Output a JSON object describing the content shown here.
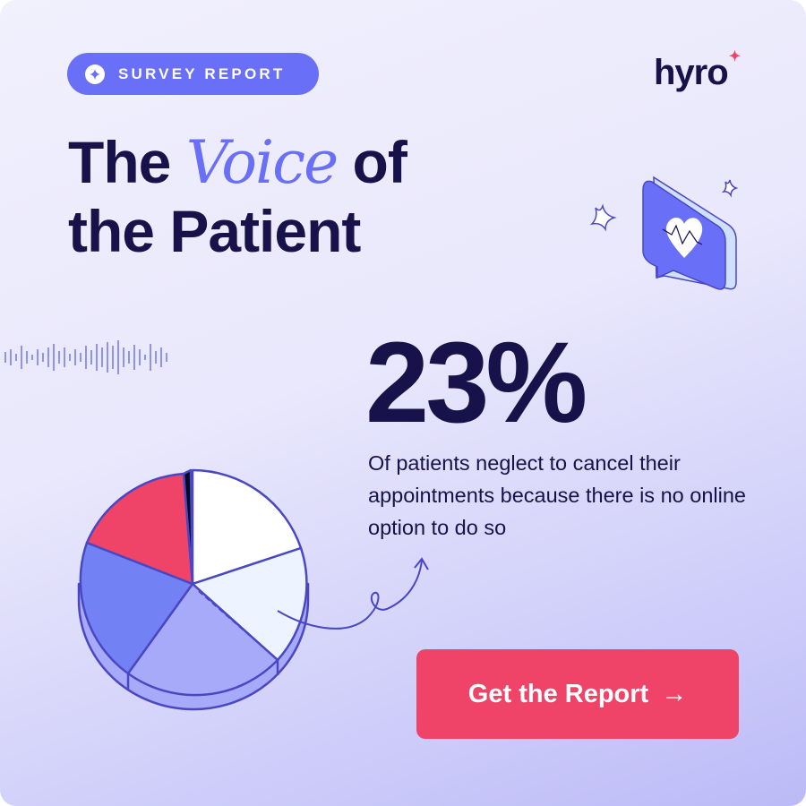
{
  "badge": {
    "label": "SURVEY REPORT",
    "icon": "sparkle-icon"
  },
  "logo": {
    "text": "hyro"
  },
  "headline": {
    "part1": "The",
    "highlight": "Voice",
    "part2": "of",
    "line2": "the Patient"
  },
  "stat": {
    "value": "23%",
    "description": "Of patients neglect to cancel their appointments because there is no online option to do so"
  },
  "cta": {
    "label": "Get the Report",
    "icon": "arrow-right-icon"
  },
  "colors": {
    "navy": "#17124a",
    "accent": "#6a6ff7",
    "cta": "#ef4467"
  }
}
